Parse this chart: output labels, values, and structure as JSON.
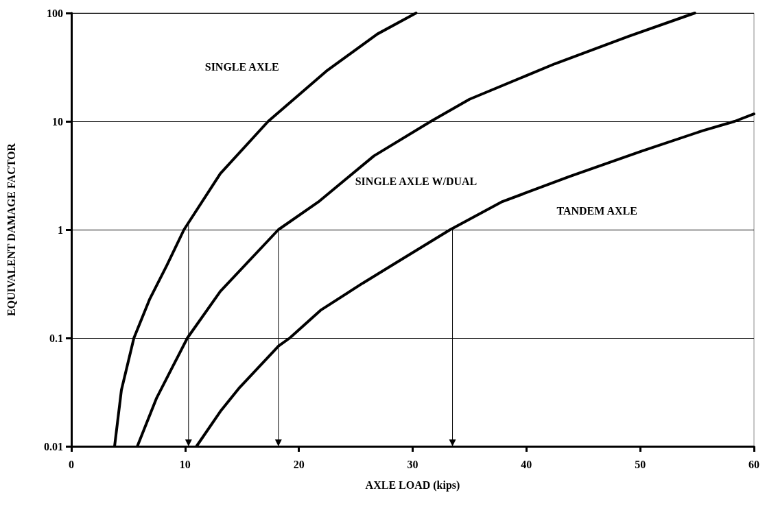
{
  "chart_data": {
    "type": "line",
    "xlabel": "AXLE LOAD (kips)",
    "ylabel": "EQUIVALENT DAMAGE FACTOR",
    "log": "y",
    "grid": "y",
    "legend": false,
    "marker": "none",
    "line_style": "solid",
    "xlim": [
      0,
      60
    ],
    "xticks": [
      0,
      10,
      20,
      30,
      40,
      50,
      60
    ],
    "ylim": [
      0.01,
      100
    ],
    "yticks": [
      0.01,
      0.1,
      1,
      10,
      100
    ],
    "series": [
      {
        "name": "SINGLE AXLE",
        "color": "#000000",
        "x": [
          3.8,
          4.4,
          5.5,
          6.9,
          8.4,
          9.9,
          13.1,
          17.3,
          22.4,
          26.9,
          30.3
        ],
        "values": [
          0.01,
          0.033,
          0.1,
          0.23,
          0.47,
          1,
          3.3,
          10,
          29,
          64,
          100
        ]
      },
      {
        "name": "SINGLE AXLE W/DUAL",
        "color": "#000000",
        "x": [
          5.8,
          7.5,
          10.2,
          13.1,
          18.2,
          21.7,
          26.6,
          31.6,
          35,
          42.5,
          49,
          54.8
        ],
        "values": [
          0.01,
          0.028,
          0.1,
          0.27,
          1,
          1.8,
          4.8,
          10,
          16,
          34,
          61,
          100
        ]
      },
      {
        "name": "TANDEM AXLE",
        "color": "#000000",
        "x": [
          11,
          13.1,
          14.8,
          18.2,
          19.2,
          21.9,
          25.6,
          28.2,
          33.3,
          37.8,
          43.8,
          50.1,
          55.5,
          58.3,
          60
        ],
        "values": [
          0.01,
          0.021,
          0.035,
          0.084,
          0.1,
          0.18,
          0.32,
          0.47,
          1,
          1.8,
          3.1,
          5.3,
          8.2,
          10,
          11.7
        ]
      }
    ],
    "ref_lines": [
      {
        "axis": "x",
        "value": 10.3,
        "color": "#000000",
        "line_style": "solid"
      },
      {
        "axis": "x",
        "value": 18.2,
        "color": "#000000",
        "line_style": "solid"
      },
      {
        "axis": "x",
        "value": 33.5,
        "color": "#000000",
        "line_style": "solid"
      }
    ]
  }
}
